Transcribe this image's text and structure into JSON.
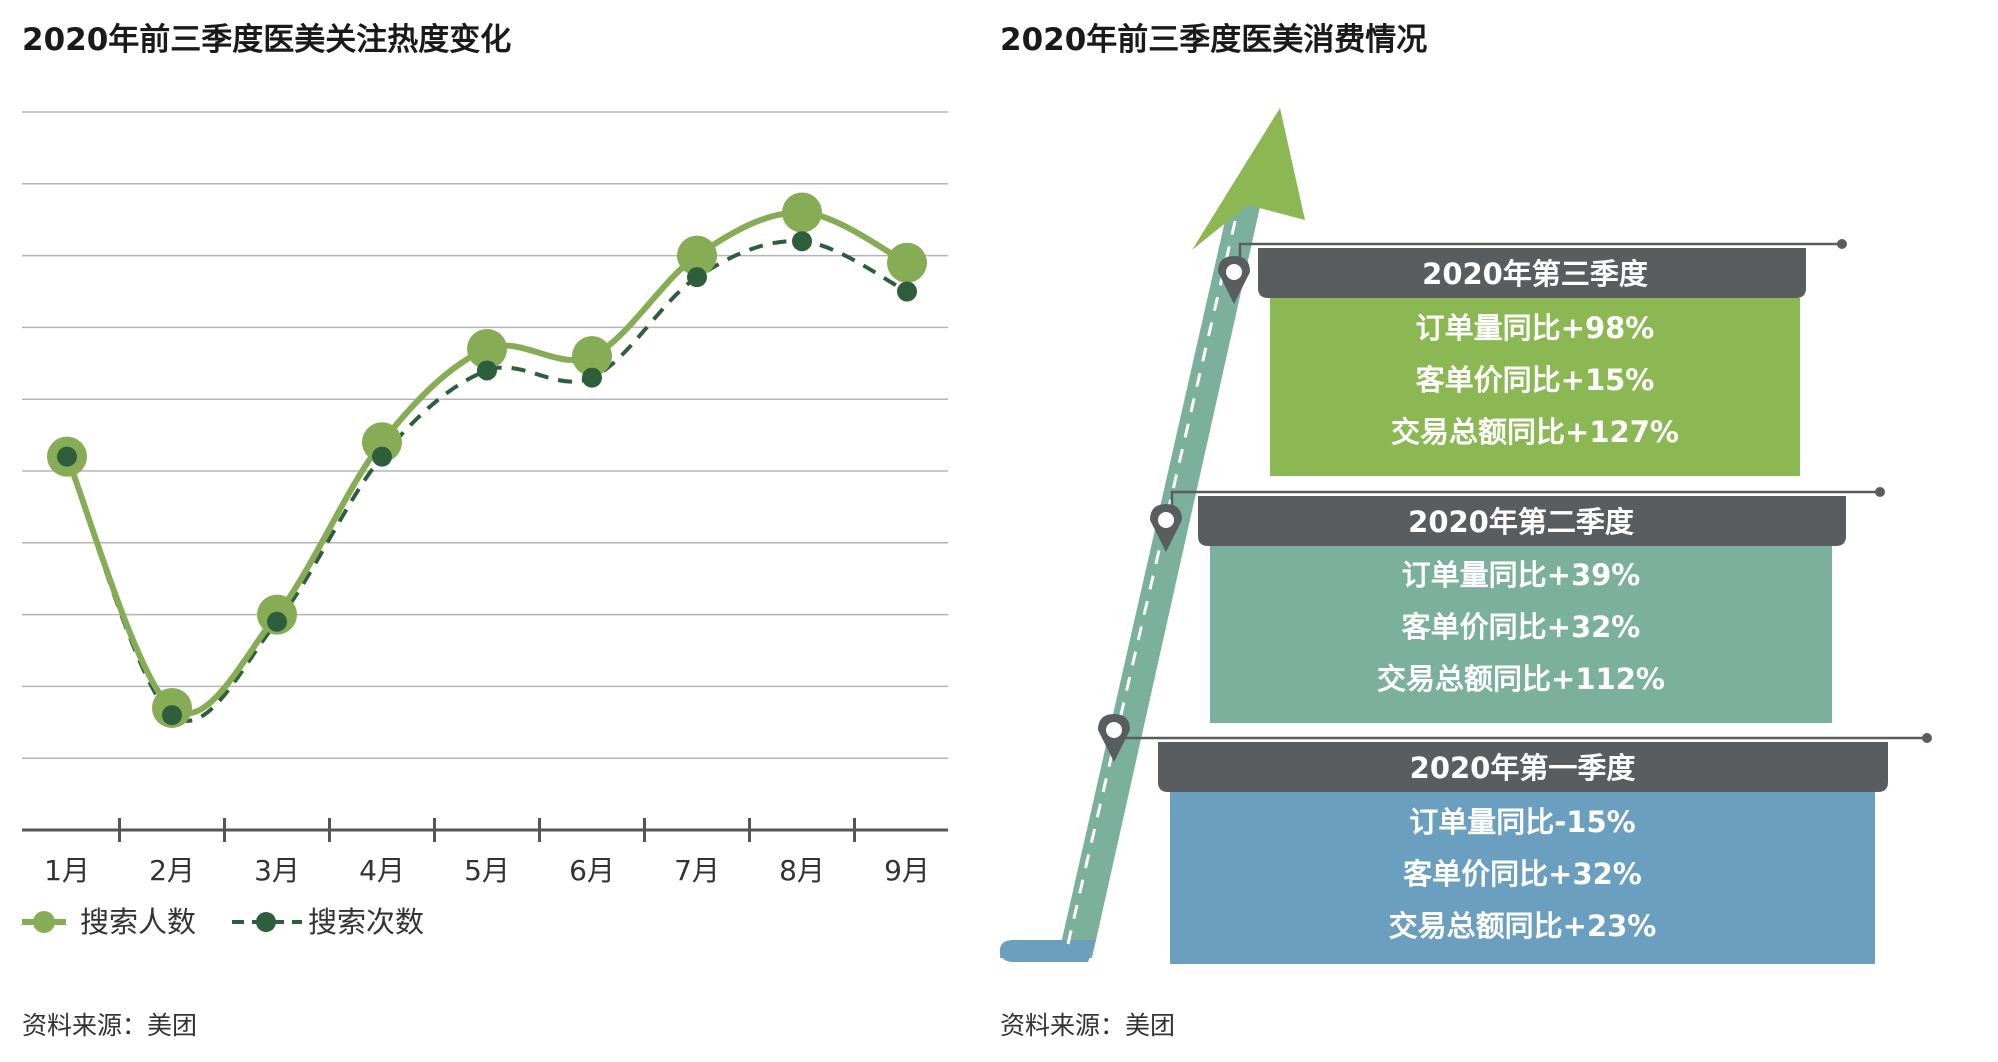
{
  "chart_data": [
    {
      "type": "line",
      "title": "2020年前三季度医美关注热度变化",
      "categories": [
        "1月",
        "2月",
        "3月",
        "4月",
        "5月",
        "6月",
        "7月",
        "8月",
        "9月"
      ],
      "series": [
        {
          "name": "搜索人数",
          "values": [
            4.2,
            0.7,
            2.0,
            4.4,
            5.7,
            5.6,
            7.0,
            7.6,
            6.9
          ]
        },
        {
          "name": "搜索次数",
          "values": [
            4.2,
            0.6,
            1.9,
            4.2,
            5.4,
            5.3,
            6.7,
            7.2,
            6.5
          ]
        }
      ],
      "ylim": [
        -1,
        9
      ],
      "grid": true,
      "legend": "bottom-left",
      "source": "资料来源：美团"
    },
    {
      "type": "table",
      "title": "2020年前三季度医美消费情况",
      "stages": [
        {
          "title": "2020年第一季度",
          "metrics": [
            "订单量同比-15%",
            "客单价同比+32%",
            "交易总额同比+23%"
          ],
          "color": "#6a9fc0"
        },
        {
          "title": "2020年第二季度",
          "metrics": [
            "订单量同比+39%",
            "客单价同比+32%",
            "交易总额同比+112%"
          ],
          "color": "#7ab09c"
        },
        {
          "title": "2020年第三季度",
          "metrics": [
            "订单量同比+98%",
            "客单价同比+15%",
            "交易总额同比+127%"
          ],
          "color": "#8cb854"
        }
      ],
      "source": "资料来源：美团"
    }
  ],
  "colors": {
    "series_solid": "#86ac55",
    "series_dashed": "#2f5e3c",
    "header_bar": "#5a5d60",
    "grid": "#b5b5b5",
    "axis": "#555555"
  }
}
